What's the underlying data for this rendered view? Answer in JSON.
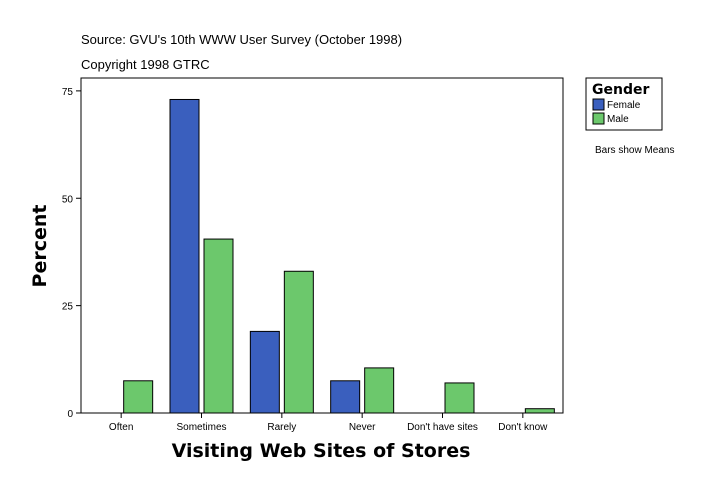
{
  "header": {
    "source": "Source: GVU's 10th WWW User Survey (October 1998)",
    "copyright": "Copyright 1998 GTRC"
  },
  "legend": {
    "title": "Gender",
    "note": "Bars show Means"
  },
  "colors": {
    "female": "#3a5fbe",
    "male": "#6cc86c",
    "border": "#000000",
    "background": "#ffffff"
  },
  "chart_data": {
    "type": "bar",
    "title": "",
    "xlabel": "Visiting Web Sites of Stores",
    "ylabel": "Percent",
    "ylim": [
      0,
      78
    ],
    "yticks": [
      0,
      25,
      50,
      75
    ],
    "categories": [
      "Often",
      "Sometimes",
      "Rarely",
      "Never",
      "Don't have sites",
      "Don't know"
    ],
    "series": [
      {
        "name": "Female",
        "color": "#3a5fbe",
        "values": [
          null,
          73,
          19,
          7.5,
          null,
          null
        ]
      },
      {
        "name": "Male",
        "color": "#6cc86c",
        "values": [
          7.5,
          40.5,
          33,
          10.5,
          7,
          1
        ]
      }
    ],
    "grid": false,
    "legend_position": "top-right"
  }
}
